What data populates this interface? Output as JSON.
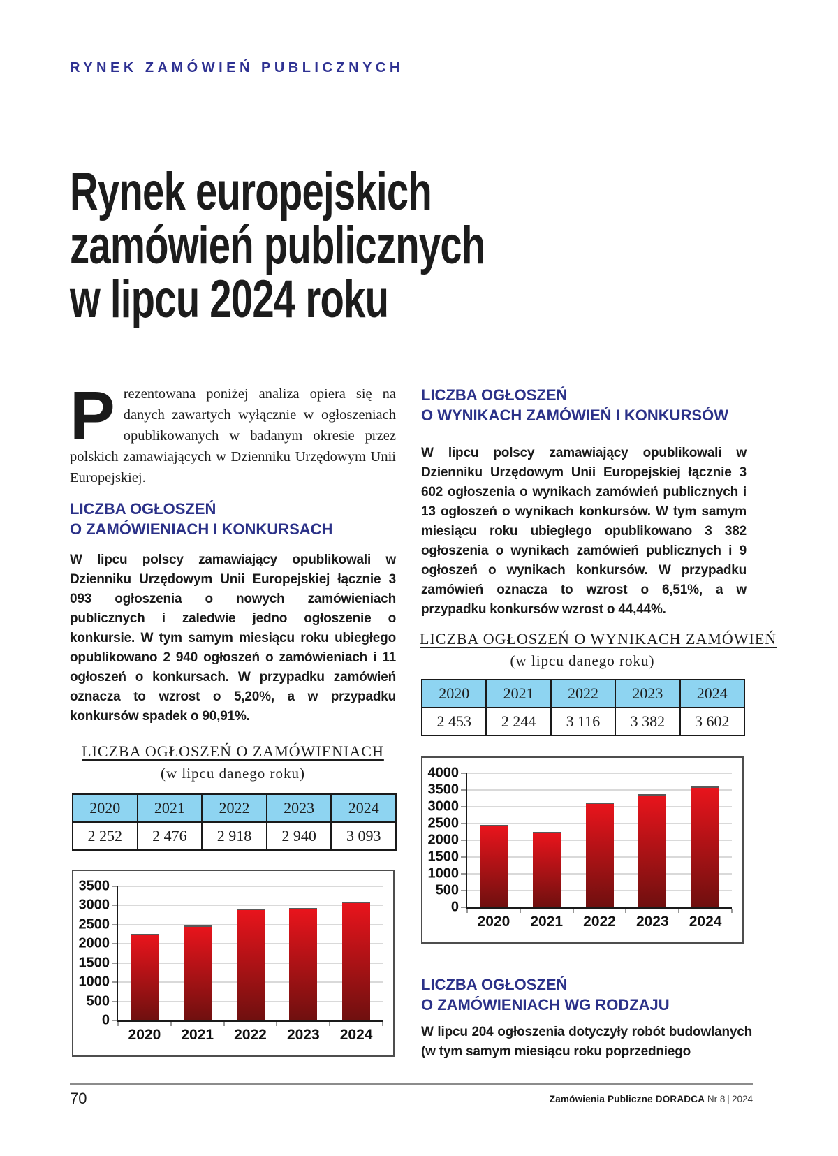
{
  "kicker": "RYNEK ZAMÓWIEŃ PUBLICZNYCH",
  "title": {
    "lines": [
      "Rynek europejskich",
      "zamówień publicznych",
      "w lipcu 2024 roku"
    ]
  },
  "intro": {
    "dropcap": "P",
    "text": "rezentowana poniżej analiza opiera się na danych zawartych wyłącznie w ogłoszeniach opublikowanych w badanym okresie przez polskich zamawiających w Dzienniku Urzędowym Unii Europejskiej."
  },
  "sections": [
    {
      "heading_line1": "LICZBA OGŁOSZEŃ",
      "heading_line2": "O ZAMÓWIENIACH I KONKURSACH",
      "body": "W lipcu polscy zamawiający opublikowali w Dzienniku Urzędowym Unii Europejskiej łącznie 3 093 ogłoszenia o nowych zamówieniach publicznych i zaledwie jedno ogłoszenie o konkursie. W tym samym miesiącu roku ubiegłego opublikowano 2 940 ogłoszeń o zamówieniach i 11 ogłoszeń o konkursach. W przypadku zamówień oznacza to wzrost o 5,20%, a w przypadku konkursów spadek o 90,91%."
    },
    {
      "heading_line1": "LICZBA OGŁOSZEŃ",
      "heading_line2": "O WYNIKACH ZAMÓWIEŃ I KONKURSÓW",
      "body": "W lipcu polscy zamawiający opublikowali w Dzienniku Urzędowym Unii Europejskiej łącznie 3 602 ogłoszenia o wynikach zamówień publicznych i 13 ogłoszeń o wynikach konkursów. W tym samym miesiącu roku ubiegłego opublikowano 3 382 ogłoszenia o wynikach zamówień publicznych i 9 ogłoszeń o wynikach konkursów. W przypadku zamówień oznacza to wzrost o 6,51%, a w przypadku konkursów wzrost o 44,44%."
    },
    {
      "heading_line1": "LICZBA OGŁOSZEŃ",
      "heading_line2": "O ZAMÓWIENIACH WG RODZAJU",
      "body": "W lipcu 204 ogłoszenia dotyczyły robót budowlanych (w tym samym miesiącu roku poprzedniego"
    }
  ],
  "tables": [
    {
      "title": "LICZBA OGŁOSZEŃ O ZAMÓWIENIACH",
      "subtitle": "(w lipcu danego roku)",
      "years": [
        "2020",
        "2021",
        "2022",
        "2023",
        "2024"
      ],
      "values": [
        "2 252",
        "2 476",
        "2 918",
        "2 940",
        "3 093"
      ]
    },
    {
      "title": "LICZBA OGŁOSZEŃ O WYNIKACH ZAMÓWIEŃ",
      "subtitle": "(w lipcu danego roku)",
      "years": [
        "2020",
        "2021",
        "2022",
        "2023",
        "2024"
      ],
      "values": [
        "2 453",
        "2 244",
        "3 116",
        "3 382",
        "3 602"
      ]
    }
  ],
  "chart_data": [
    {
      "type": "bar",
      "title": "LICZBA OGŁOSZEŃ O ZAMÓWIENIACH (w lipcu danego roku)",
      "categories": [
        "2020",
        "2021",
        "2022",
        "2023",
        "2024"
      ],
      "values": [
        2252,
        2476,
        2918,
        2940,
        3093
      ],
      "xlabel": "",
      "ylabel": "",
      "ylim": [
        0,
        3500
      ],
      "ytick_step": 500,
      "grid": true,
      "legend": false
    },
    {
      "type": "bar",
      "title": "LICZBA OGŁOSZEŃ O WYNIKACH ZAMÓWIEŃ (w lipcu danego roku)",
      "categories": [
        "2020",
        "2021",
        "2022",
        "2023",
        "2024"
      ],
      "values": [
        2453,
        2244,
        3116,
        3382,
        3602
      ],
      "xlabel": "",
      "ylabel": "",
      "ylim": [
        0,
        4000
      ],
      "ytick_step": 500,
      "grid": true,
      "legend": false
    }
  ],
  "footer": {
    "page_number": "70",
    "journal": "Zamówienia Publiczne DORADCA",
    "issue": "Nr 8",
    "separator": "|",
    "year": "2024"
  },
  "colors": {
    "accent_navy": "#2E3192",
    "heading_navy": "#2B3188",
    "table_header_blue": "#8ED4F1",
    "bar_red_top": "#E8141C",
    "bar_red_bottom": "#6F100F",
    "rule_gray": "#8C8C8C"
  }
}
